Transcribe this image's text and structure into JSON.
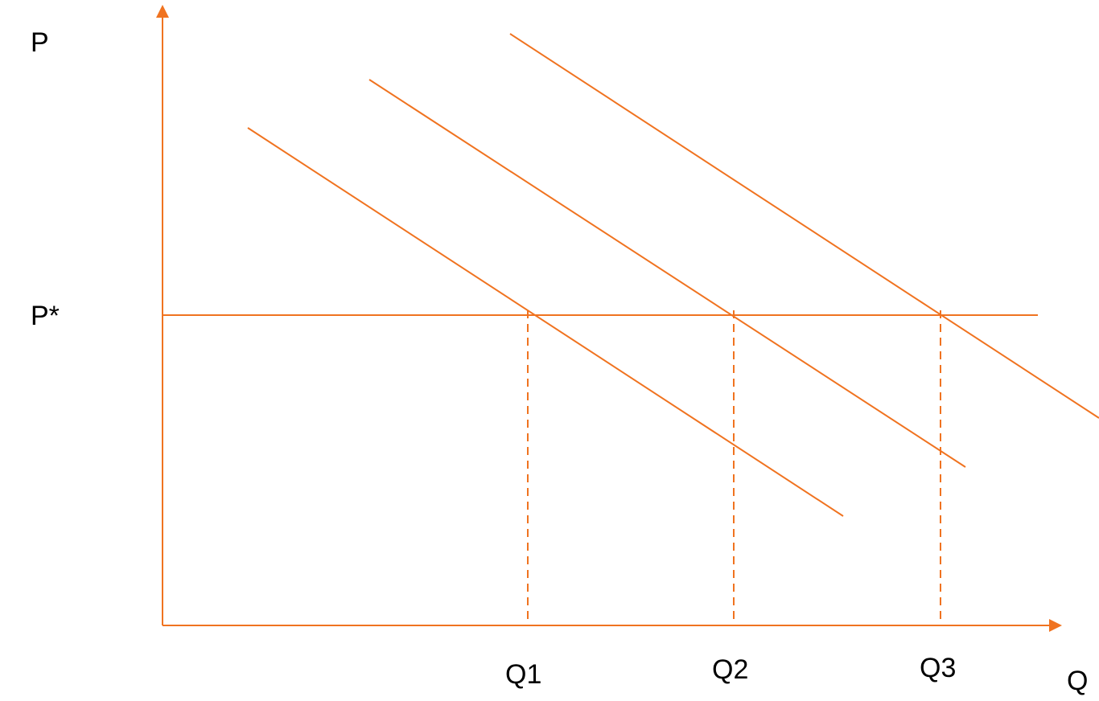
{
  "diagram": {
    "type": "line-diagram",
    "labels": {
      "y_axis": "P",
      "x_axis": "Q",
      "price_level": "P*",
      "q1": "Q1",
      "q2": "Q2",
      "q3": "Q3"
    },
    "colors": {
      "line": "#F07320",
      "text": "#000000",
      "background": "#ffffff"
    }
  }
}
